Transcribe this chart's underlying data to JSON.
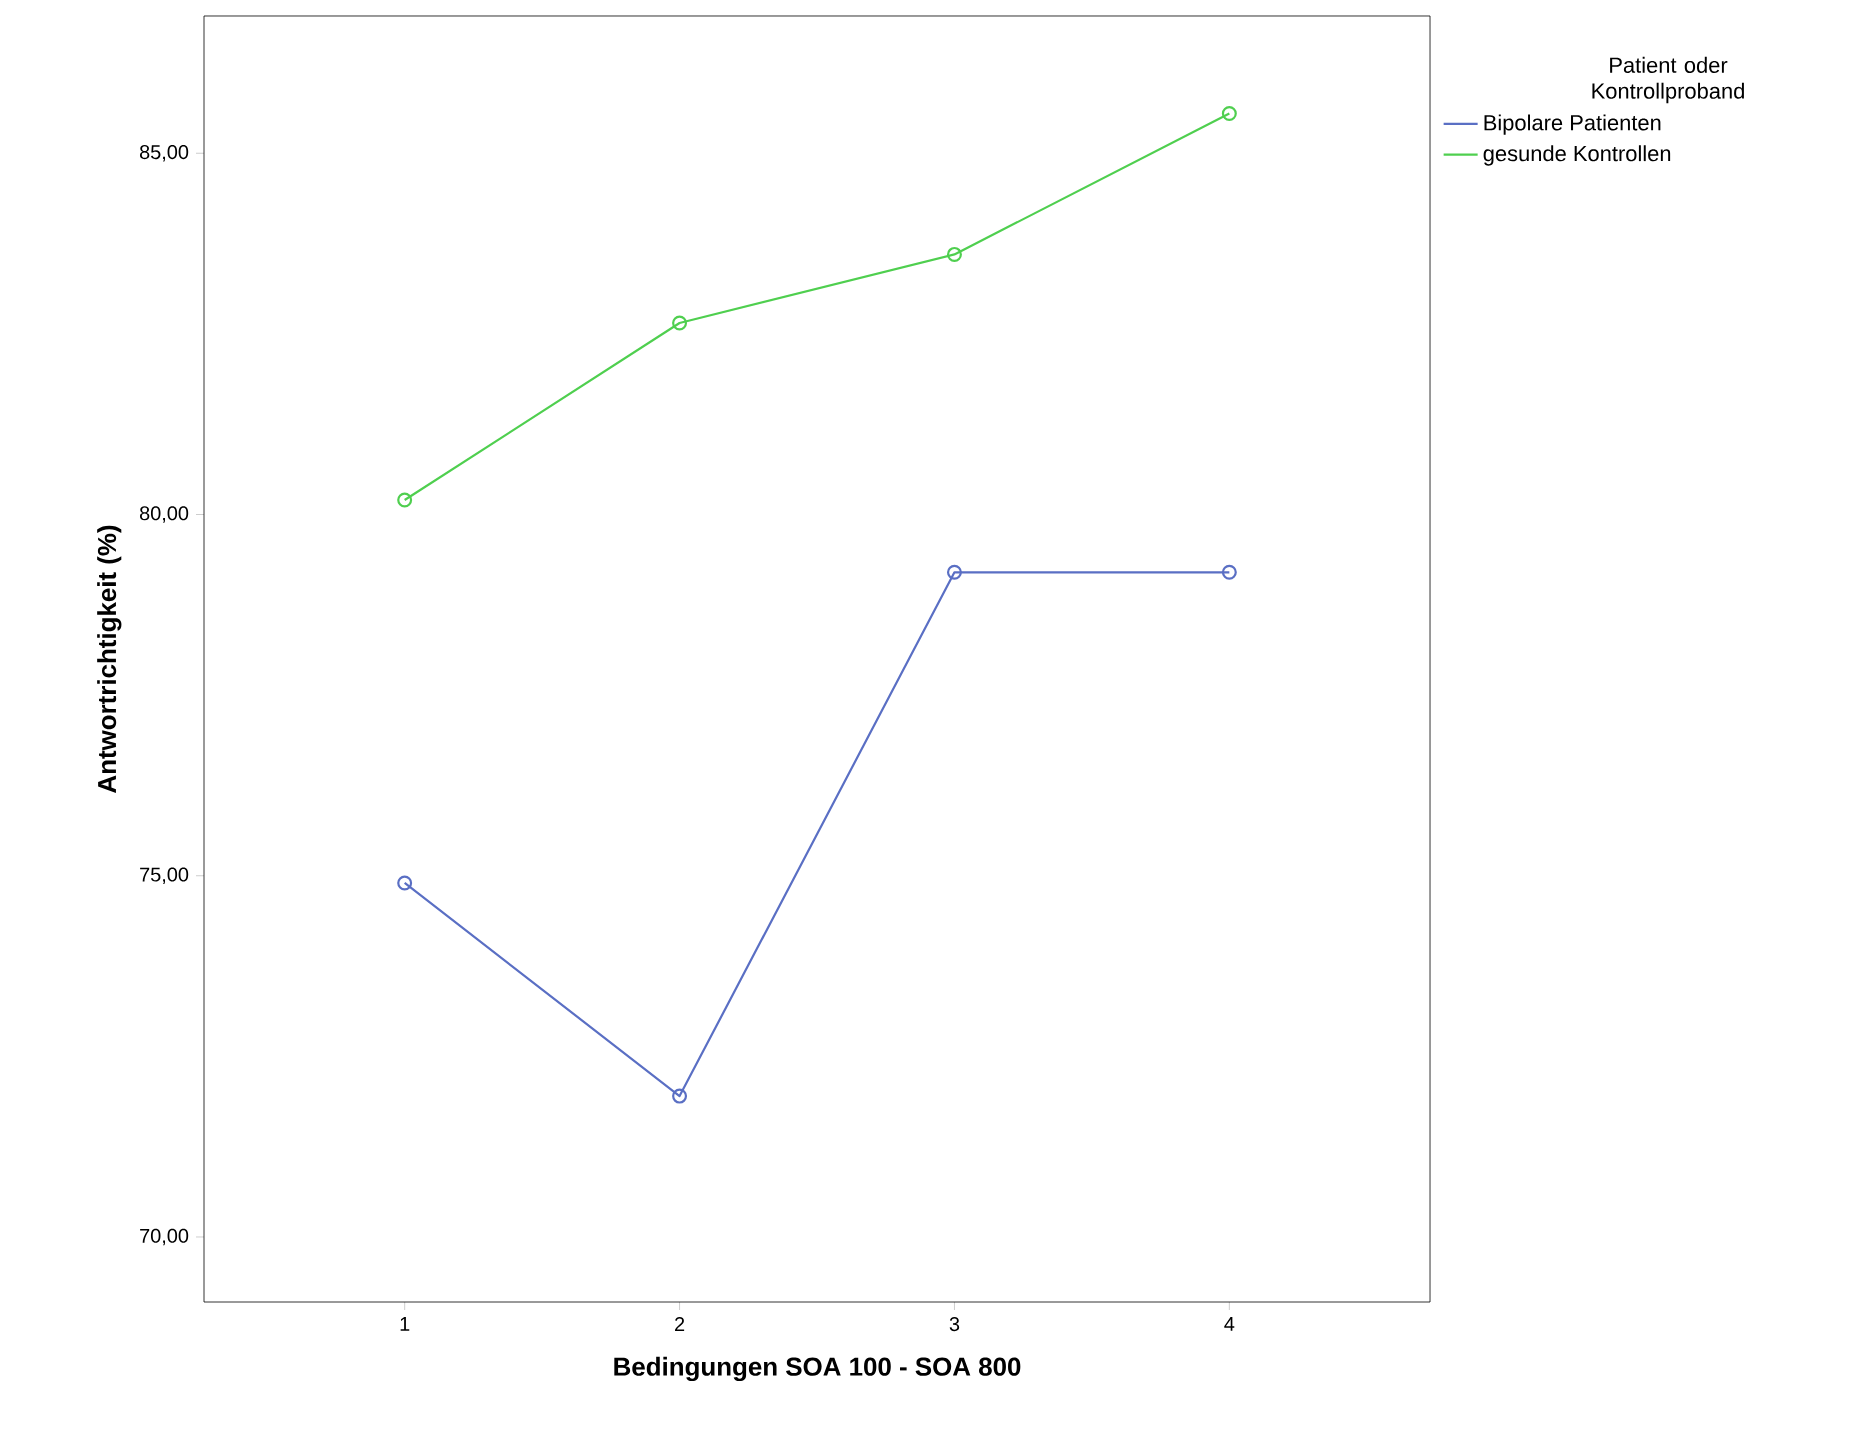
{
  "chart_data": {
    "type": "line",
    "xlabel": "Bedingungen SOA 100 - SOA 800",
    "ylabel": "Antwortrichtigkeit (%)",
    "legend_title": "Patient oder Kontrollproband",
    "x": [
      1,
      2,
      3,
      4
    ],
    "xlim": [
      0.27,
      4.73
    ],
    "xticks": [
      1,
      2,
      3,
      4
    ],
    "ylim": [
      69.1,
      86.9
    ],
    "yticks": [
      {
        "value": 70,
        "label": "70,00"
      },
      {
        "value": 75,
        "label": "75,00"
      },
      {
        "value": 80,
        "label": "80,00"
      },
      {
        "value": 85,
        "label": "85,00"
      }
    ],
    "series": [
      {
        "name": "Bipolare Patienten",
        "color": "#5a6fc4",
        "values": [
          74.9,
          71.95,
          79.2,
          79.2
        ]
      },
      {
        "name": "gesunde Kontrollen",
        "color": "#4fcf4f",
        "values": [
          80.2,
          82.65,
          83.6,
          85.55
        ]
      }
    ],
    "marker": "circle",
    "line_style": "solid",
    "legend": "right",
    "grid": false
  }
}
